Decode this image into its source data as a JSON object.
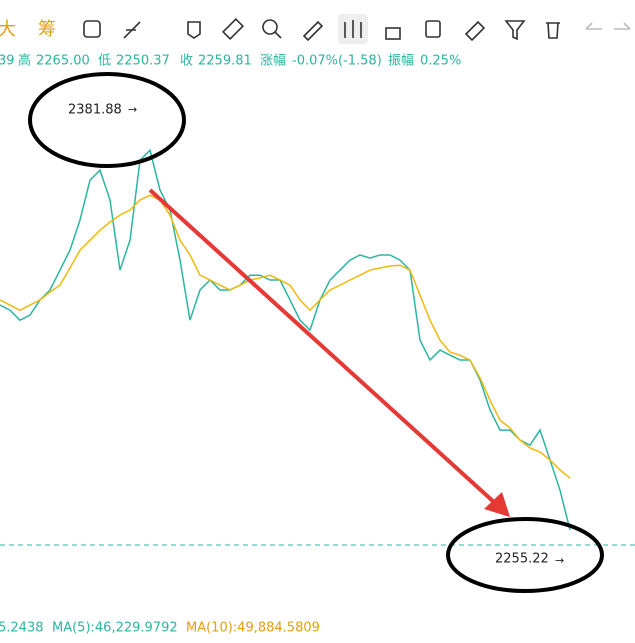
{
  "toolbar": {
    "left": [
      "大",
      "筹"
    ]
  },
  "ohlc": {
    "open_tail": "39",
    "high_label": "高",
    "high": "2265.00",
    "low_label": "低",
    "low": "2250.37",
    "close_label": "收",
    "close": "2259.81",
    "change_label": "涨幅",
    "change": "-0.07%(-1.58)",
    "amp_label": "振幅",
    "amp": "0.25%"
  },
  "footer": {
    "vol": "5.2438",
    "ma5": "MA(5):46,229.9792",
    "ma10": "MA(10):49,884.5809"
  },
  "chart_data": {
    "type": "line",
    "ylim": [
      2236.3,
      2402.3
    ],
    "annotations": {
      "high": 2381.88,
      "last": 2255.22
    },
    "series": [
      {
        "color": "#2bb5a0",
        "values": [
          2325.1,
          2323.6,
          2320.7,
          2322.2,
          2326.6,
          2329.5,
          2335.3,
          2341.1,
          2349.9,
          2361.5,
          2364.4,
          2355.7,
          2335.3,
          2344.0,
          2367.3,
          2370.2,
          2358.6,
          2352.8,
          2338.2,
          2320.7,
          2329.5,
          2332.4,
          2329.5,
          2329.5,
          2330.9,
          2333.8,
          2333.8,
          2332.4,
          2332.4,
          2326.6,
          2320.7,
          2317.8,
          2326.6,
          2332.4,
          2335.3,
          2338.2,
          2339.7,
          2338.8,
          2339.7,
          2339.7,
          2338.2,
          2335.3,
          2314.9,
          2309.1,
          2312.0,
          2310.5,
          2309.1,
          2309.1,
          2303.3,
          2294.6,
          2288.7,
          2288.7,
          2285.8,
          2284.3,
          2288.7,
          2280.0,
          2271.2,
          2259.6
        ]
      },
      {
        "color": "#f0b90b",
        "values": [
          2326.6,
          2325.1,
          2323.6,
          2325.1,
          2326.6,
          2328.9,
          2330.9,
          2335.9,
          2341.1,
          2344.0,
          2346.9,
          2349.3,
          2351.3,
          2352.8,
          2355.7,
          2357.1,
          2355.7,
          2351.3,
          2344.0,
          2339.7,
          2333.8,
          2332.4,
          2330.9,
          2329.5,
          2330.9,
          2332.4,
          2333.0,
          2333.8,
          2332.4,
          2330.9,
          2326.6,
          2323.6,
          2326.6,
          2329.5,
          2330.9,
          2332.4,
          2333.8,
          2335.3,
          2335.9,
          2336.5,
          2336.7,
          2335.3,
          2328.0,
          2320.7,
          2314.9,
          2311.4,
          2310.5,
          2309.1,
          2303.9,
          2297.4,
          2291.6,
          2289.3,
          2285.8,
          2283.5,
          2282.3,
          2280.0,
          2277.1,
          2274.7
        ]
      }
    ]
  }
}
